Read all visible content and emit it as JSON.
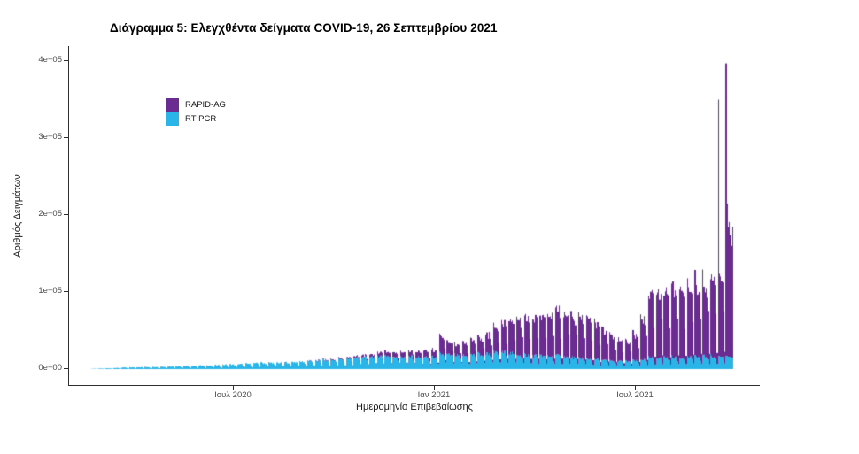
{
  "title": "Διάγραμμα 5: Ελεγχθέντα δείγματα COVID-19, 26 Σεπτεμβρίου 2021",
  "legend": {
    "items": [
      {
        "label": "RAPID-AG",
        "color": "#6A2C91"
      },
      {
        "label": "RT-PCR",
        "color": "#29B5E8"
      }
    ]
  },
  "axes": {
    "y": {
      "title": "Αριθμός Δειγμάτων",
      "ticks": [
        {
          "label": "0e+00",
          "value": 0
        },
        {
          "label": "1e+05",
          "value": 100000
        },
        {
          "label": "2e+05",
          "value": 200000
        },
        {
          "label": "3e+05",
          "value": 300000
        },
        {
          "label": "4e+05",
          "value": 400000
        }
      ]
    },
    "x": {
      "title": "Ημερομηνία Επιβεβαίωσης",
      "ticks": [
        {
          "label": "Ιουλ 2020",
          "date": "2020-07-01"
        },
        {
          "label": "Ιαν 2021",
          "date": "2021-01-01"
        },
        {
          "label": "Ιουλ 2021",
          "date": "2021-07-01"
        }
      ]
    }
  },
  "chart_data": {
    "type": "bar",
    "stacked": true,
    "title": "Διάγραμμα 5: Ελεγχθέντα δείγματα COVID-19, 26 Σεπτεμβρίου 2021",
    "xlabel": "Ημερομηνία Επιβεβαίωσης",
    "ylabel": "Αριθμός Δειγμάτων",
    "ylim": [
      0,
      400000
    ],
    "x_start_date": "2020-02-25",
    "x_end_date": "2021-09-26",
    "series": [
      {
        "name": "RAPID-AG",
        "color": "#6A2C91",
        "stack_position": "top"
      },
      {
        "name": "RT-PCR",
        "color": "#29B5E8",
        "stack_position": "bottom"
      }
    ],
    "week_anchor_start": "2020-02-24",
    "weekly_weekday_peaks": {
      "rt_pcr": [
        400,
        700,
        1000,
        1500,
        2000,
        2300,
        2600,
        2800,
        3000,
        3300,
        3600,
        3900,
        4100,
        4400,
        4800,
        5100,
        5400,
        5800,
        6200,
        6700,
        7200,
        7700,
        8200,
        8700,
        8800,
        9200,
        9700,
        10200,
        10800,
        11300,
        11800,
        12300,
        13000,
        13800,
        14800,
        15800,
        16800,
        17800,
        17800,
        17000,
        16800,
        16400,
        16000,
        15600,
        16000,
        20000,
        19000,
        18000,
        18000,
        19000,
        20000,
        21000,
        22000,
        22000,
        21000,
        20000,
        19000,
        18000,
        17500,
        17500,
        18000,
        16500,
        15500,
        15000,
        14000,
        13000,
        12000,
        11000,
        10500,
        10500,
        11000,
        13000,
        15000,
        15500,
        15500,
        16000,
        15500,
        16000,
        16500,
        17000,
        17500,
        17000,
        17000
      ],
      "rapid_ag": [
        0,
        0,
        0,
        0,
        0,
        0,
        0,
        0,
        0,
        0,
        0,
        0,
        0,
        0,
        0,
        0,
        0,
        0,
        0,
        0,
        0,
        0,
        0,
        0,
        0,
        0,
        0,
        0,
        400,
        700,
        900,
        1100,
        1400,
        1900,
        2400,
        3000,
        4000,
        5000,
        6000,
        6500,
        7000,
        7400,
        7800,
        8400,
        10000,
        24000,
        16000,
        15000,
        18000,
        20000,
        23000,
        27000,
        34000,
        40000,
        44000,
        48000,
        50000,
        52000,
        55000,
        60000,
        62000,
        56000,
        55000,
        58000,
        52000,
        46000,
        40000,
        35000,
        30000,
        28000,
        36000,
        55000,
        85000,
        90000,
        88000,
        95000,
        90000,
        95000,
        100000,
        105000,
        112000,
        120000,
        170000
      ]
    },
    "weekday_profile": {
      "rt_pcr": [
        0.4,
        1.0,
        0.97,
        0.95,
        0.96,
        0.9,
        0.66
      ],
      "rapid_ag": [
        0.12,
        1.0,
        0.95,
        0.93,
        0.94,
        0.88,
        0.55
      ]
    },
    "spike_days": [
      {
        "date": "2021-09-13",
        "rt_pcr": 17000,
        "rapid_ag": 333000
      },
      {
        "date": "2021-09-20",
        "rt_pcr": 17000,
        "rapid_ag": 380000
      },
      {
        "date": "2021-09-21",
        "rt_pcr": 17000,
        "rapid_ag": 198000
      },
      {
        "date": "2021-09-22",
        "rt_pcr": 16000,
        "rapid_ag": 168000
      },
      {
        "date": "2021-09-23",
        "rt_pcr": 16000,
        "rapid_ag": 175000
      },
      {
        "date": "2021-09-24",
        "rt_pcr": 16000,
        "rapid_ag": 158000
      },
      {
        "date": "2021-09-25",
        "rt_pcr": 15000,
        "rapid_ag": 145000
      },
      {
        "date": "2021-09-26",
        "rt_pcr": 15000,
        "rapid_ag": 170000
      }
    ]
  }
}
